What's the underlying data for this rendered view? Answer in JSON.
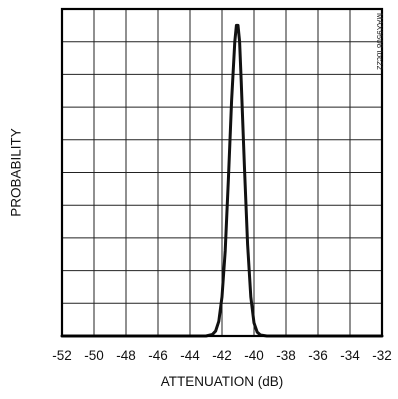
{
  "chart_data": {
    "type": "line",
    "title": "",
    "xlabel": "ATTENUATION (dB)",
    "ylabel": "PROBABILITY",
    "xlim": [
      -52,
      -32
    ],
    "ylim": [
      0,
      10
    ],
    "x_ticks": [
      "-52",
      "-50",
      "-48",
      "-46",
      "-44",
      "-42",
      "-40",
      "-38",
      "-36",
      "-34",
      "-32"
    ],
    "y_gridlines": 10,
    "grid": true,
    "legend": "none",
    "series": [
      {
        "x": [
          -52,
          -43,
          -42.6,
          -42.4,
          -42.2,
          -42.0,
          -41.8,
          -41.6,
          -41.4,
          -41.2,
          -41.1,
          -41.0,
          -40.9,
          -40.8,
          -40.6,
          -40.4,
          -40.2,
          -40.0,
          -39.8,
          -39.6,
          -39.2,
          -32
        ],
        "y": [
          0,
          0,
          0.05,
          0.15,
          0.45,
          1.2,
          2.6,
          4.8,
          7.2,
          9.0,
          9.5,
          9.5,
          9.0,
          7.8,
          5.2,
          2.8,
          1.2,
          0.4,
          0.12,
          0.03,
          0,
          0
        ]
      }
    ]
  },
  "watermark": "MAX9508 toc22",
  "colors": {
    "line": "#111111",
    "grid": "#222222",
    "background": "#ffffff"
  }
}
